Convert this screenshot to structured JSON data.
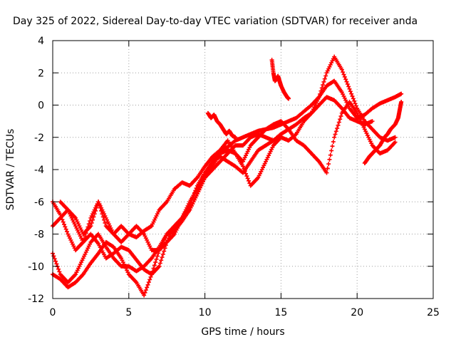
{
  "chart_data": {
    "type": "scatter",
    "title": "Day 325 of 2022, Sidereal Day-to-day VTEC variation (SDTVAR) for receiver anda",
    "xlabel": "GPS time / hours",
    "ylabel": "SDTVAR / TECUs",
    "xlim": [
      0,
      25
    ],
    "ylim": [
      -12,
      4
    ],
    "xticks": [
      "0",
      "5",
      "10",
      "15",
      "20",
      "25"
    ],
    "yticks": [
      "4",
      "2",
      "0",
      "-2",
      "-4",
      "-6",
      "-8",
      "-10",
      "-12"
    ],
    "grid": true,
    "legend": "none",
    "marker": "+",
    "color": "#ff0000",
    "series": [
      {
        "x": [
          0.0,
          0.5,
          1.0,
          1.5,
          2.0,
          2.5,
          3.0,
          3.5,
          4.0,
          4.5,
          5.0,
          5.5,
          6.0,
          6.5,
          7.0,
          7.5,
          8.0,
          8.5,
          9.0,
          9.5,
          10.0,
          10.5,
          11.0,
          11.5,
          12.0,
          12.5,
          13.0,
          13.5,
          14.0,
          14.5,
          15.0,
          15.5,
          16.0,
          16.5,
          17.0,
          17.5,
          18.0,
          18.5,
          19.0,
          19.5,
          20.0,
          20.5,
          21.0,
          21.5,
          22.0,
          22.5,
          22.9
        ],
        "y": [
          -7.5,
          -7.0,
          -6.5,
          -7.0,
          -8.0,
          -7.5,
          -6.0,
          -7.5,
          -8.0,
          -7.5,
          -8.0,
          -8.2,
          -7.8,
          -7.5,
          -6.5,
          -6.0,
          -5.2,
          -4.8,
          -5.0,
          -4.5,
          -3.8,
          -3.2,
          -2.8,
          -2.6,
          -2.2,
          -2.0,
          -1.8,
          -1.6,
          -1.5,
          -1.4,
          -1.2,
          -1.0,
          -0.8,
          -0.4,
          0.0,
          0.5,
          1.2,
          1.5,
          0.8,
          -0.2,
          -0.8,
          -0.6,
          -0.2,
          0.1,
          0.3,
          0.5,
          0.7
        ]
      },
      {
        "x": [
          0.0,
          0.5,
          1.0,
          1.5,
          2.0,
          2.5,
          3.0,
          3.5,
          4.0,
          4.5,
          5.0,
          5.5,
          6.0,
          6.5,
          7.0,
          7.5,
          8.0,
          8.5,
          9.0,
          9.5,
          10.0,
          10.5,
          11.0,
          11.5,
          12.0,
          12.5,
          13.0,
          13.5,
          14.0,
          14.5,
          15.0,
          15.5,
          16.0,
          16.5,
          17.0,
          17.5,
          18.0,
          18.5,
          19.0,
          19.5,
          20.0,
          20.5,
          21.0
        ],
        "y": [
          -6.0,
          -6.8,
          -8.0,
          -9.0,
          -8.5,
          -8.0,
          -8.6,
          -9.5,
          -9.2,
          -8.8,
          -9.0,
          -9.6,
          -10.2,
          -10.5,
          -10.0,
          -8.5,
          -7.5,
          -7.0,
          -6.5,
          -5.5,
          -4.5,
          -4.0,
          -3.5,
          -3.0,
          -2.5,
          -2.5,
          -2.0,
          -1.8,
          -2.0,
          -2.2,
          -1.8,
          -1.5,
          -1.2,
          -0.8,
          -0.5,
          0.0,
          0.5,
          0.3,
          -0.2,
          -0.8,
          -1.0,
          -1.2,
          -1.0
        ]
      },
      {
        "x": [
          0.0,
          0.5,
          1.0,
          1.5,
          2.0,
          2.5,
          3.0,
          3.5,
          4.0,
          4.5,
          5.0,
          5.5,
          6.0,
          6.5,
          7.0,
          7.5,
          8.0,
          8.5,
          9.0,
          9.5,
          10.0,
          10.5,
          11.0,
          11.5,
          12.0,
          12.5,
          13.0,
          13.5,
          14.0,
          14.5,
          15.0,
          15.5,
          16.0,
          16.5,
          17.0,
          17.5,
          18.0,
          18.5,
          19.0,
          19.5,
          20.0,
          20.5,
          21.0,
          21.5,
          22.0,
          22.5
        ],
        "y": [
          -9.2,
          -10.5,
          -11.0,
          -10.5,
          -9.5,
          -8.5,
          -8.0,
          -8.8,
          -9.5,
          -10.0,
          -10.0,
          -10.3,
          -10.0,
          -9.5,
          -8.8,
          -8.0,
          -7.5,
          -7.0,
          -6.2,
          -5.0,
          -4.2,
          -3.8,
          -3.0,
          -2.8,
          -3.0,
          -3.8,
          -5.0,
          -4.5,
          -3.5,
          -2.5,
          -2.0,
          -2.2,
          -1.8,
          -1.0,
          -0.5,
          0.5,
          2.0,
          3.0,
          2.2,
          1.0,
          -0.2,
          -1.0,
          -1.5,
          -2.0,
          -2.2,
          -2.0
        ]
      },
      {
        "x": [
          0.0,
          0.5,
          1.0,
          1.5,
          2.0,
          2.5,
          3.0,
          3.5,
          4.0,
          4.5,
          5.0,
          5.5,
          6.0,
          6.5,
          7.0,
          7.5,
          8.0,
          8.5,
          9.0,
          9.5,
          10.0,
          10.5,
          11.0,
          11.5,
          12.0,
          12.5,
          13.0,
          13.5,
          14.0,
          14.5,
          15.0,
          15.5,
          16.0,
          16.5,
          17.0,
          17.5,
          18.0,
          18.5,
          19.0,
          19.5,
          20.0,
          20.5,
          21.0,
          21.5,
          22.0,
          22.5
        ],
        "y": [
          -10.5,
          -10.8,
          -11.3,
          -11.0,
          -10.5,
          -9.8,
          -9.2,
          -8.5,
          -8.8,
          -9.5,
          -10.5,
          -11.0,
          -11.8,
          -10.5,
          -9.0,
          -8.0,
          -7.8,
          -7.2,
          -6.5,
          -5.5,
          -4.5,
          -3.5,
          -2.8,
          -2.2,
          -3.0,
          -3.5,
          -2.5,
          -2.0,
          -1.5,
          -1.2,
          -1.0,
          -1.5,
          -2.2,
          -2.5,
          -3.0,
          -3.5,
          -4.2,
          -2.0,
          -0.5,
          0.2,
          -0.5,
          -1.5,
          -2.5,
          -3.0,
          -2.8,
          -2.3
        ]
      },
      {
        "x": [
          0.5,
          1.0,
          1.5,
          2.0,
          2.5,
          3.0,
          3.5,
          4.0,
          4.5,
          5.0,
          5.5,
          6.0,
          6.5,
          7.0,
          7.5,
          8.0,
          8.5,
          9.0,
          9.5,
          10.0,
          10.5,
          11.0,
          11.5,
          12.0,
          12.5,
          13.0,
          13.5,
          14.0,
          14.5,
          15.0
        ],
        "y": [
          -6.0,
          -6.5,
          -7.5,
          -8.5,
          -7.0,
          -6.0,
          -7.0,
          -8.0,
          -8.5,
          -8.0,
          -7.5,
          -8.0,
          -9.0,
          -9.0,
          -8.5,
          -8.0,
          -7.0,
          -6.0,
          -5.2,
          -4.2,
          -3.5,
          -3.2,
          -3.5,
          -3.8,
          -4.2,
          -3.5,
          -2.8,
          -2.5,
          -2.2,
          -1.8
        ]
      },
      {
        "x": [
          14.4,
          14.5,
          14.6,
          14.7,
          14.8,
          14.9,
          15.0,
          15.2,
          15.4,
          15.5
        ],
        "y": [
          2.8,
          2.0,
          1.5,
          1.6,
          1.8,
          1.5,
          1.2,
          0.8,
          0.5,
          0.4
        ]
      },
      {
        "x": [
          10.2,
          10.4,
          10.6,
          10.8,
          11.0,
          11.2,
          11.4,
          11.6,
          11.8,
          12.0
        ],
        "y": [
          -0.5,
          -0.8,
          -0.6,
          -1.0,
          -1.2,
          -1.5,
          -1.8,
          -1.6,
          -1.9,
          -2.0
        ]
      },
      {
        "x": [
          20.5,
          20.8,
          21.0,
          21.2,
          21.5,
          21.8,
          22.0,
          22.2,
          22.5,
          22.7,
          22.8,
          22.9
        ],
        "y": [
          -3.6,
          -3.2,
          -3.0,
          -2.8,
          -2.5,
          -2.0,
          -1.8,
          -1.5,
          -1.2,
          -0.8,
          -0.3,
          0.2
        ]
      }
    ]
  }
}
